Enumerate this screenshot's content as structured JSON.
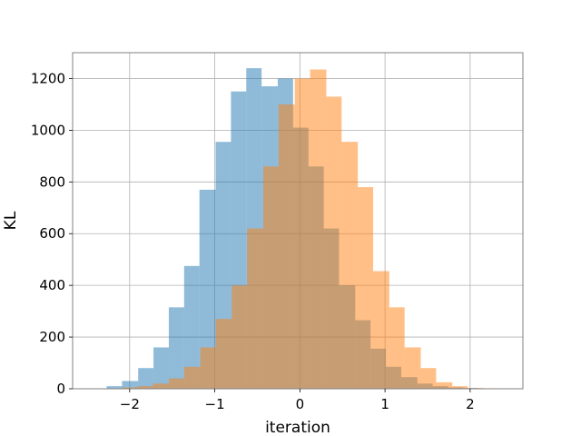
{
  "chart_data": {
    "type": "bar",
    "title": "",
    "xlabel": "iteration",
    "ylabel": "KL",
    "xlim": [
      -2.67,
      2.62
    ],
    "ylim": [
      0,
      1300
    ],
    "xticks": [
      -2,
      -1,
      0,
      1,
      2
    ],
    "xtick_labels": [
      "−2",
      "−1",
      "0",
      "1",
      "2"
    ],
    "yticks": [
      0,
      200,
      400,
      600,
      800,
      1000,
      1200
    ],
    "ytick_labels": [
      "0",
      "200",
      "400",
      "600",
      "800",
      "1000",
      "1200"
    ],
    "grid": true,
    "legend": null,
    "series": [
      {
        "color": "#1f77b4",
        "alpha": 0.5,
        "bins": [
          {
            "x0": -2.27,
            "x1": -2.09,
            "value": 10
          },
          {
            "x0": -2.09,
            "x1": -1.9,
            "value": 30
          },
          {
            "x0": -1.9,
            "x1": -1.72,
            "value": 80
          },
          {
            "x0": -1.72,
            "x1": -1.54,
            "value": 160
          },
          {
            "x0": -1.54,
            "x1": -1.36,
            "value": 315
          },
          {
            "x0": -1.36,
            "x1": -1.18,
            "value": 475
          },
          {
            "x0": -1.18,
            "x1": -0.99,
            "value": 770
          },
          {
            "x0": -0.99,
            "x1": -0.81,
            "value": 955
          },
          {
            "x0": -0.81,
            "x1": -0.63,
            "value": 1150
          },
          {
            "x0": -0.63,
            "x1": -0.45,
            "value": 1240
          },
          {
            "x0": -0.45,
            "x1": -0.26,
            "value": 1170
          },
          {
            "x0": -0.26,
            "x1": -0.08,
            "value": 1200
          },
          {
            "x0": -0.08,
            "x1": 0.1,
            "value": 1010
          },
          {
            "x0": 0.1,
            "x1": 0.28,
            "value": 860
          },
          {
            "x0": 0.28,
            "x1": 0.46,
            "value": 620
          },
          {
            "x0": 0.46,
            "x1": 0.65,
            "value": 400
          },
          {
            "x0": 0.65,
            "x1": 0.83,
            "value": 265
          },
          {
            "x0": 0.83,
            "x1": 1.01,
            "value": 155
          },
          {
            "x0": 1.01,
            "x1": 1.19,
            "value": 85
          },
          {
            "x0": 1.19,
            "x1": 1.38,
            "value": 45
          },
          {
            "x0": 1.38,
            "x1": 1.56,
            "value": 20
          },
          {
            "x0": 1.56,
            "x1": 1.74,
            "value": 10
          },
          {
            "x0": 1.74,
            "x1": 1.92,
            "value": 5
          },
          {
            "x0": 1.92,
            "x1": 2.1,
            "value": 3
          }
        ]
      },
      {
        "color": "#ff7f0e",
        "alpha": 0.5,
        "bins": [
          {
            "x0": -2.1,
            "x1": -1.91,
            "value": 5
          },
          {
            "x0": -1.91,
            "x1": -1.73,
            "value": 10
          },
          {
            "x0": -1.73,
            "x1": -1.54,
            "value": 20
          },
          {
            "x0": -1.54,
            "x1": -1.36,
            "value": 40
          },
          {
            "x0": -1.36,
            "x1": -1.17,
            "value": 85
          },
          {
            "x0": -1.17,
            "x1": -0.99,
            "value": 160
          },
          {
            "x0": -0.99,
            "x1": -0.8,
            "value": 270
          },
          {
            "x0": -0.8,
            "x1": -0.62,
            "value": 400
          },
          {
            "x0": -0.62,
            "x1": -0.43,
            "value": 620
          },
          {
            "x0": -0.43,
            "x1": -0.25,
            "value": 860
          },
          {
            "x0": -0.25,
            "x1": -0.06,
            "value": 1100
          },
          {
            "x0": -0.06,
            "x1": 0.12,
            "value": 1200
          },
          {
            "x0": 0.12,
            "x1": 0.31,
            "value": 1235
          },
          {
            "x0": 0.31,
            "x1": 0.49,
            "value": 1130
          },
          {
            "x0": 0.49,
            "x1": 0.68,
            "value": 955
          },
          {
            "x0": 0.68,
            "x1": 0.86,
            "value": 780
          },
          {
            "x0": 0.86,
            "x1": 1.05,
            "value": 455
          },
          {
            "x0": 1.05,
            "x1": 1.23,
            "value": 315
          },
          {
            "x0": 1.23,
            "x1": 1.42,
            "value": 160
          },
          {
            "x0": 1.42,
            "x1": 1.6,
            "value": 80
          },
          {
            "x0": 1.6,
            "x1": 1.79,
            "value": 25
          },
          {
            "x0": 1.79,
            "x1": 1.97,
            "value": 10
          },
          {
            "x0": 1.97,
            "x1": 2.16,
            "value": 3
          },
          {
            "x0": 2.16,
            "x1": 2.34,
            "value": 2
          }
        ]
      }
    ]
  }
}
